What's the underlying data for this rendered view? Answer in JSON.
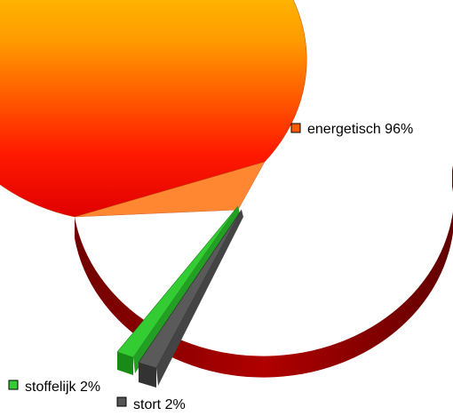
{
  "chart_data": {
    "type": "pie",
    "style": "3d-exploded",
    "slices": [
      {
        "label": "energetisch",
        "value": 96,
        "display": "energetisch 96%",
        "color": "#ff2a00",
        "gradient": [
          "#ffe600",
          "#ff9a00",
          "#ff1a00"
        ]
      },
      {
        "label": "stoffelijk",
        "value": 2,
        "display": "stoffelijk 2%",
        "color": "#33cc33"
      },
      {
        "label": "stort",
        "value": 2,
        "display": "stort 2%",
        "color": "#555555"
      }
    ],
    "legend": "labels-next-to-slices",
    "title": ""
  }
}
